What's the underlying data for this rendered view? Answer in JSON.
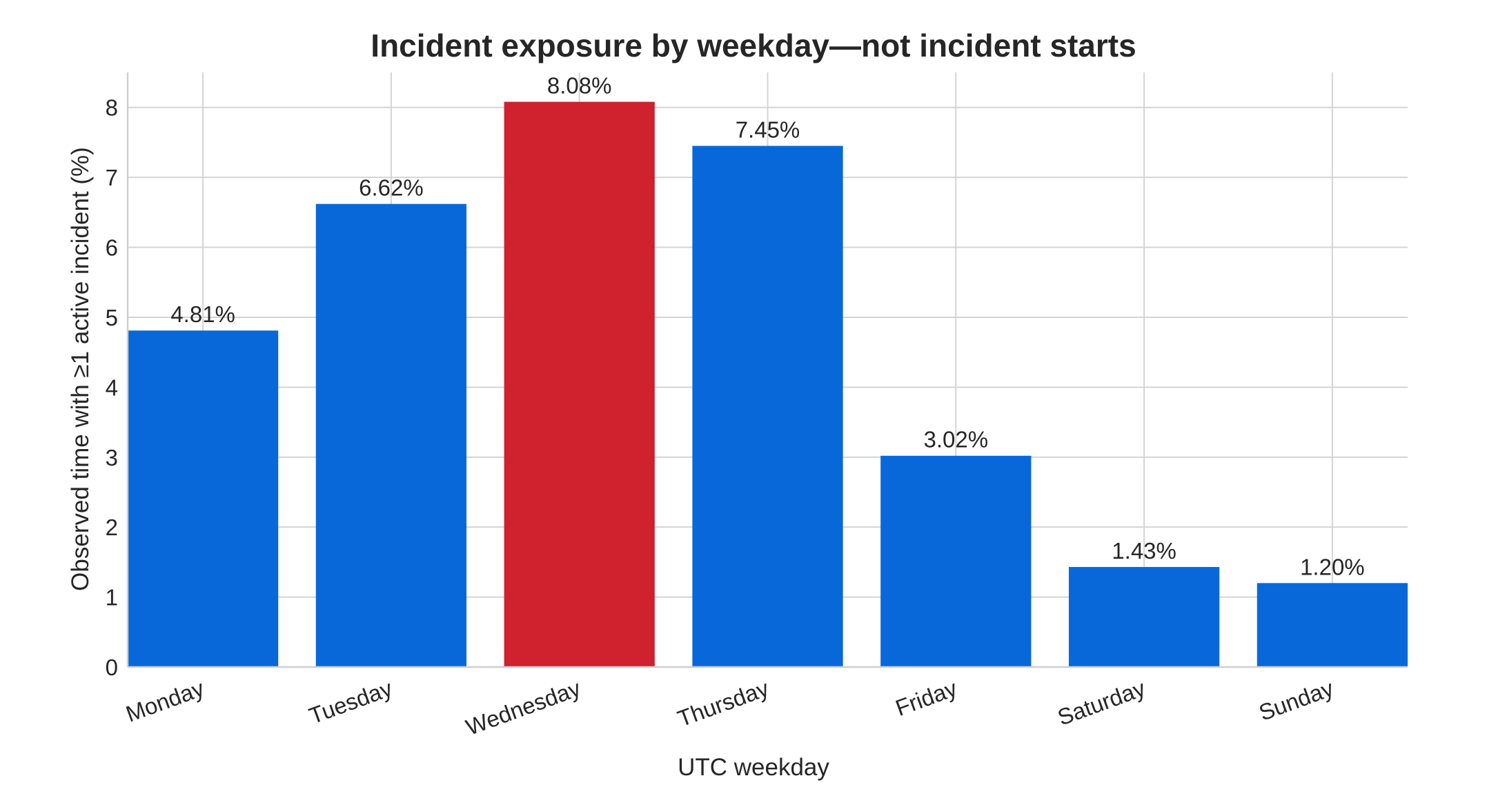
{
  "chart_data": {
    "type": "bar",
    "title": "Incident exposure by weekday—not incident starts",
    "xlabel": "UTC weekday",
    "ylabel": "Observed time with ≥1 active incident (%)",
    "categories": [
      "Monday",
      "Tuesday",
      "Wednesday",
      "Thursday",
      "Friday",
      "Saturday",
      "Sunday"
    ],
    "values": [
      4.81,
      6.62,
      8.08,
      7.45,
      3.02,
      1.43,
      1.2
    ],
    "data_labels": [
      "4.81%",
      "6.62%",
      "8.08%",
      "7.45%",
      "3.02%",
      "1.43%",
      "1.20%"
    ],
    "ylim": [
      0,
      8.5
    ],
    "yticks": [
      0,
      1,
      2,
      3,
      4,
      5,
      6,
      7,
      8
    ],
    "ytick_labels": [
      "0",
      "1",
      "2",
      "3",
      "4",
      "5",
      "6",
      "7",
      "8"
    ],
    "grid": true,
    "highlight_category": "Wednesday",
    "colors": {
      "bar": "#0868da",
      "highlight": "#cf212e"
    }
  }
}
